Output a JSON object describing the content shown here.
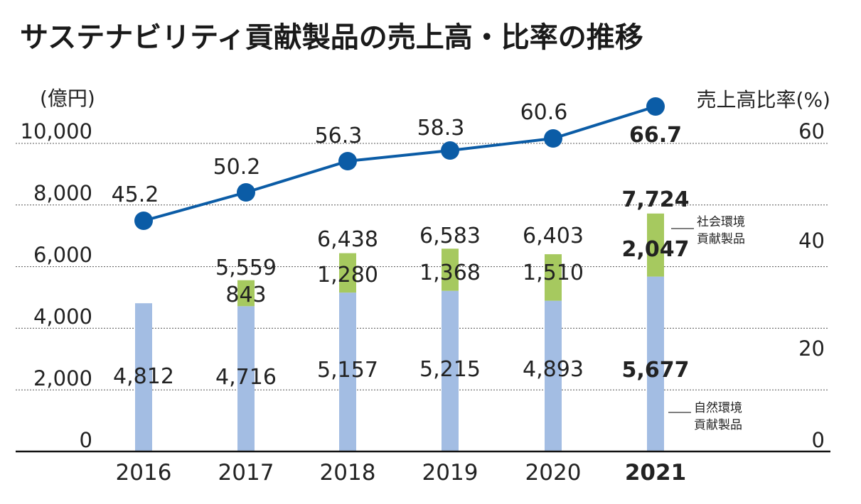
{
  "title": "サステナビリティ貢献製品の売上高・比率の推移",
  "chart_data": {
    "type": "bar",
    "title": "サステナビリティ貢献製品の売上高・比率の推移",
    "categories": [
      "2016",
      "2017",
      "2018",
      "2019",
      "2020",
      "2021"
    ],
    "highlight_category": "2021",
    "y_left": {
      "unit": "(億円)",
      "lim": [
        0,
        10000
      ],
      "ticks": [
        "0",
        "2,000",
        "4,000",
        "6,000",
        "8,000",
        "10,000"
      ],
      "tick_values": [
        0,
        2000,
        4000,
        6000,
        8000,
        10000
      ]
    },
    "y_right": {
      "unit": "売上高比率(%)",
      "lim": [
        0,
        60
      ],
      "ticks": [
        "0",
        "20",
        "40",
        "60"
      ],
      "tick_values": [
        0,
        20,
        40,
        60
      ]
    },
    "grid": "dashed horizontal",
    "series": [
      {
        "name": "自然環境貢献製品",
        "kind": "stacked-bar",
        "color": "#a3bde3",
        "values": [
          4812,
          4716,
          5157,
          5215,
          4893,
          5677
        ],
        "labels": [
          "4,812",
          "4,716",
          "5,157",
          "5,215",
          "4,893",
          "5,677"
        ]
      },
      {
        "name": "社会環境貢献製品",
        "kind": "stacked-bar",
        "color": "#a6c95f",
        "values": [
          0,
          843,
          1280,
          1368,
          1510,
          2047
        ],
        "labels": [
          "",
          "843",
          "1,280",
          "1,368",
          "1,510",
          "2,047"
        ]
      },
      {
        "name": "売上高比率",
        "kind": "line",
        "axis": "right",
        "color": "#0b5ca6",
        "values": [
          45.2,
          50.2,
          56.3,
          58.3,
          60.6,
          66.7
        ],
        "labels": [
          "45.2",
          "50.2",
          "56.3",
          "58.3",
          "60.6",
          "66.7"
        ]
      }
    ],
    "totals": {
      "values": [
        4812,
        5559,
        6438,
        6583,
        6403,
        7724
      ],
      "labels": [
        "",
        "5,559",
        "6,438",
        "6,583",
        "6,403",
        "7,724"
      ]
    },
    "legend": {
      "social": [
        "社会環境",
        "貢献製品"
      ],
      "natural": [
        "自然環境",
        "貢献製品"
      ]
    }
  }
}
